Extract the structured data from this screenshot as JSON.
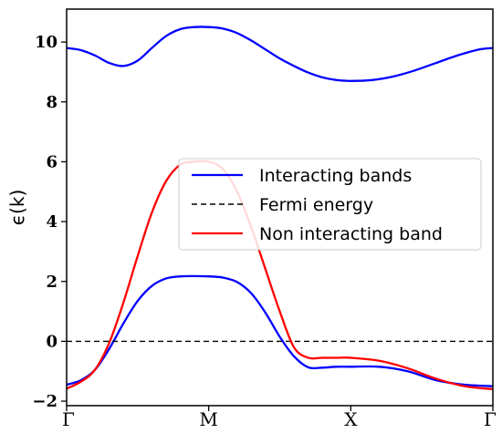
{
  "chart_data": {
    "type": "line",
    "ylabel": "ϵ(k)",
    "ylim": [
      -2.15,
      11.1
    ],
    "x_tick_positions": [
      0,
      1,
      2,
      3
    ],
    "x_tick_labels": [
      "Γ",
      "M",
      "X",
      "Γ"
    ],
    "xlim": [
      0,
      3
    ],
    "y_ticks": [
      -2,
      0,
      2,
      4,
      6,
      8,
      10
    ],
    "y_tick_labels": [
      "−2",
      "0",
      "2",
      "4",
      "6",
      "8",
      "10"
    ],
    "grid": false,
    "legend_position": "center-right",
    "series": [
      {
        "name": "Interacting bands",
        "role": "upper",
        "color": "#0000ff",
        "style": "solid",
        "x": [
          0,
          0.1,
          0.2,
          0.3,
          0.4,
          0.5,
          0.6,
          0.7,
          0.8,
          0.9,
          1.0,
          1.1,
          1.2,
          1.3,
          1.4,
          1.5,
          1.6,
          1.7,
          1.8,
          1.9,
          2.0,
          2.15,
          2.3,
          2.45,
          2.6,
          2.75,
          2.9,
          3.0
        ],
        "y": [
          9.8,
          9.73,
          9.55,
          9.3,
          9.2,
          9.38,
          9.8,
          10.2,
          10.43,
          10.5,
          10.5,
          10.45,
          10.3,
          10.05,
          9.75,
          9.45,
          9.2,
          8.98,
          8.82,
          8.73,
          8.7,
          8.73,
          8.85,
          9.05,
          9.3,
          9.55,
          9.75,
          9.8
        ]
      },
      {
        "name": "Interacting bands",
        "role": "lower",
        "color": "#0000ff",
        "style": "solid",
        "x": [
          0,
          0.1,
          0.2,
          0.3,
          0.4,
          0.5,
          0.6,
          0.7,
          0.8,
          0.9,
          1.0,
          1.1,
          1.2,
          1.3,
          1.4,
          1.5,
          1.6,
          1.7,
          1.8,
          1.9,
          2.0,
          2.2,
          2.4,
          2.6,
          2.8,
          3.0
        ],
        "y": [
          -1.45,
          -1.3,
          -0.95,
          -0.25,
          0.6,
          1.35,
          1.85,
          2.1,
          2.17,
          2.18,
          2.17,
          2.13,
          1.98,
          1.6,
          0.95,
          0.15,
          -0.5,
          -0.87,
          -0.88,
          -0.85,
          -0.85,
          -0.85,
          -1.0,
          -1.3,
          -1.45,
          -1.5
        ]
      },
      {
        "name": "Fermi energy",
        "color": "#000000",
        "style": "dashed",
        "x": [
          0,
          3
        ],
        "y": [
          0,
          0
        ]
      },
      {
        "name": "Non interacting band",
        "color": "#ff0000",
        "style": "solid",
        "x": [
          0,
          0.1,
          0.2,
          0.3,
          0.4,
          0.5,
          0.6,
          0.7,
          0.8,
          0.9,
          1.0,
          1.1,
          1.2,
          1.3,
          1.4,
          1.5,
          1.6,
          1.7,
          1.8,
          1.9,
          2.0,
          2.2,
          2.4,
          2.6,
          2.8,
          3.0
        ],
        "y": [
          -1.58,
          -1.35,
          -0.95,
          -0.05,
          1.3,
          2.85,
          4.3,
          5.35,
          5.9,
          6.0,
          6.0,
          5.75,
          5.0,
          3.8,
          2.4,
          1.0,
          -0.2,
          -0.55,
          -0.55,
          -0.55,
          -0.55,
          -0.65,
          -0.9,
          -1.25,
          -1.5,
          -1.6
        ]
      }
    ],
    "legend": [
      "Interacting bands",
      "Fermi energy",
      "Non interacting band"
    ]
  }
}
